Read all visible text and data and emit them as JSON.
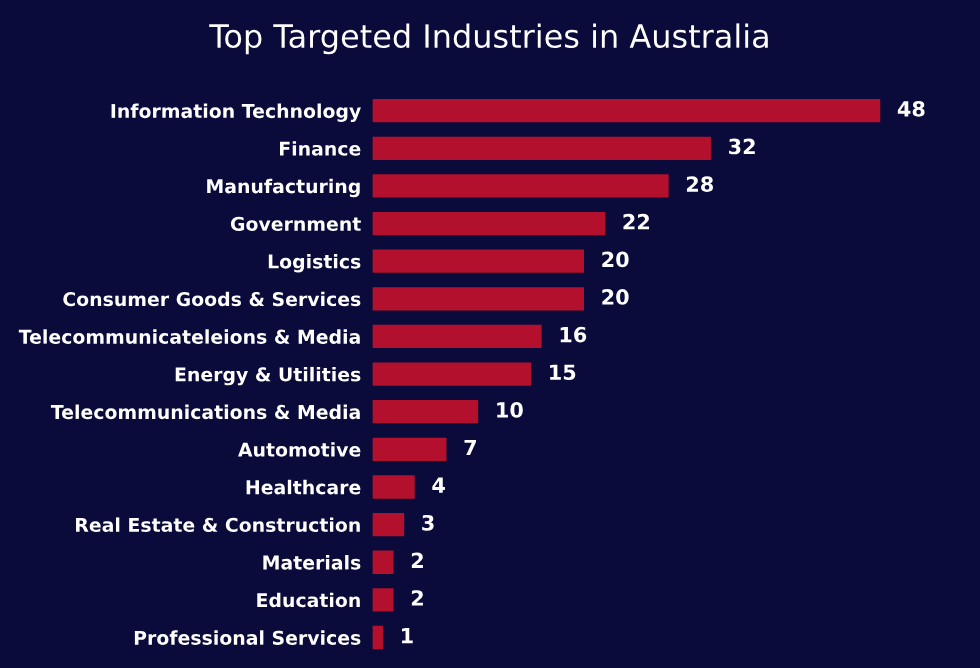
{
  "chart_data": {
    "type": "bar",
    "orientation": "horizontal",
    "title": "Top Targeted Industries in Australia",
    "categories": [
      "Information Technology",
      "Finance",
      "Manufacturing",
      "Government",
      "Logistics",
      "Consumer Goods & Services",
      "Telecommunicateleions & Media",
      "Energy & Utilities",
      "Telecommunications & Media",
      "Automotive",
      "Healthcare",
      "Real Estate & Construction",
      "Materials",
      "Education",
      "Professional Services"
    ],
    "values": [
      48,
      32,
      28,
      22,
      20,
      20,
      16,
      15,
      10,
      7,
      4,
      3,
      2,
      2,
      1
    ],
    "color": "#b3102e",
    "data_labels": true,
    "grid": false
  }
}
